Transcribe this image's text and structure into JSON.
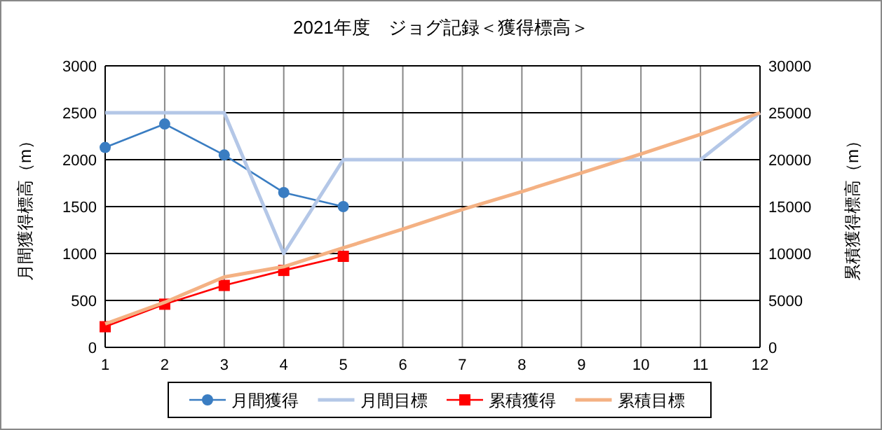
{
  "chart_data": {
    "type": "line",
    "title": "2021年度　ジョグ記録＜獲得標高＞",
    "ylabel": "月間獲得標高（m）",
    "y2label": "累積獲得標高（m）",
    "x": [
      1,
      2,
      3,
      4,
      5,
      6,
      7,
      8,
      9,
      10,
      11,
      12
    ],
    "xlim": [
      1,
      12
    ],
    "xticks": [
      1,
      2,
      3,
      4,
      5,
      6,
      7,
      8,
      9,
      10,
      11,
      12
    ],
    "ylim": [
      0,
      3000
    ],
    "yticks": [
      0,
      500,
      1000,
      1500,
      2000,
      2500,
      3000
    ],
    "y2lim": [
      0,
      30000
    ],
    "y2ticks": [
      0,
      5000,
      10000,
      15000,
      20000,
      25000,
      30000
    ],
    "grid": true,
    "legend": "bottom",
    "series": [
      {
        "name": "月間獲得",
        "color": "#3a7dc2",
        "marker": "circle",
        "values": [
          2130,
          2380,
          2050,
          1650,
          1500,
          null,
          null,
          null,
          null,
          null,
          null,
          null
        ]
      },
      {
        "name": "月間目標",
        "color": "#b4c7e7",
        "marker": "none",
        "values": [
          2500,
          2500,
          2500,
          1000,
          2000,
          2000,
          2000,
          2000,
          2000,
          2000,
          2000,
          2500
        ]
      },
      {
        "name": "累積獲得",
        "color": "#ff0000",
        "marker": "square",
        "axis": "y2",
        "values": [
          2200,
          4600,
          6600,
          8200,
          9700,
          null,
          null,
          null,
          null,
          null,
          null,
          null
        ]
      },
      {
        "name": "累積目標",
        "color": "#f4b183",
        "marker": "none",
        "axis": "y2",
        "values": [
          2500,
          4800,
          7500,
          8600,
          10600,
          12600,
          14700,
          16600,
          18600,
          20600,
          22700,
          25000
        ]
      }
    ]
  }
}
